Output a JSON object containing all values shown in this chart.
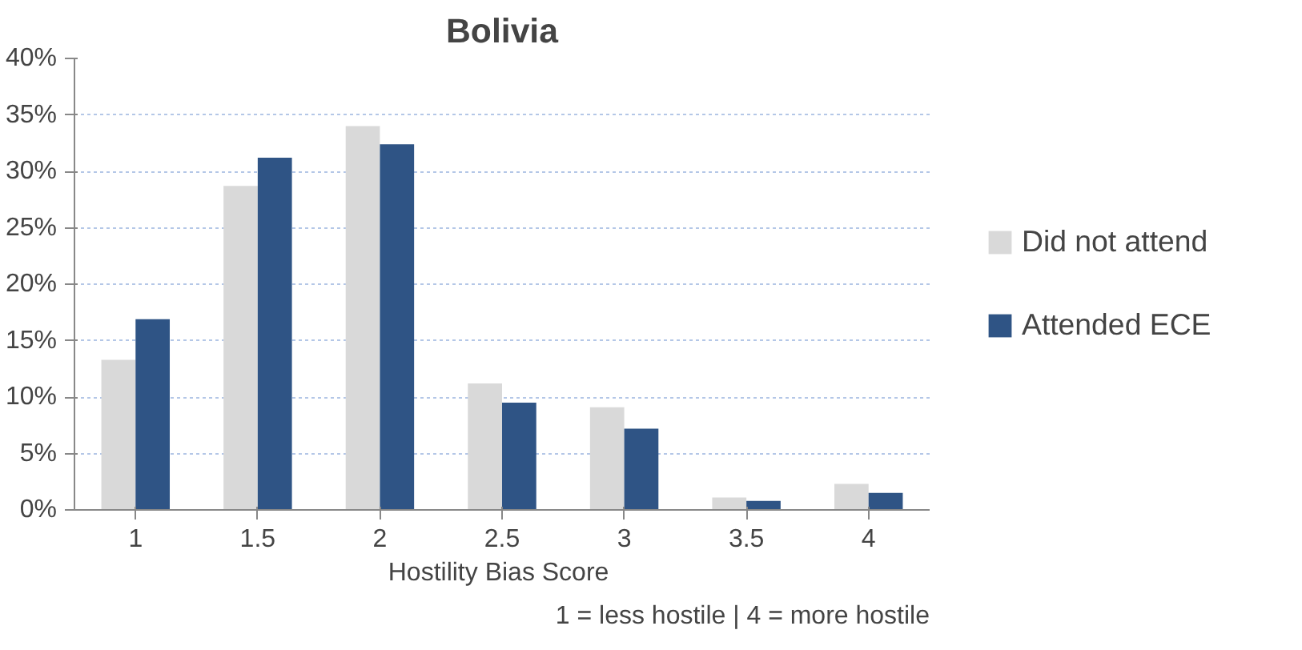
{
  "chart_data": {
    "type": "bar",
    "title": "Bolivia",
    "xlabel": "Hostility Bias  Score",
    "categories": [
      "1",
      "1.5",
      "2",
      "2.5",
      "3",
      "3.5",
      "4"
    ],
    "series": [
      {
        "name": "Did not attend",
        "color": "#d9d9d9",
        "values": [
          13.3,
          28.7,
          34.0,
          11.2,
          9.1,
          1.1,
          2.3
        ]
      },
      {
        "name": "Attended ECE",
        "color": "#2f5485",
        "values": [
          16.9,
          31.2,
          32.4,
          9.5,
          7.2,
          0.8,
          1.5
        ]
      }
    ],
    "ylim": [
      0,
      40
    ],
    "yticks": [
      {
        "value": 0,
        "label": "0%"
      },
      {
        "value": 5,
        "label": "5%"
      },
      {
        "value": 10,
        "label": "10%"
      },
      {
        "value": 15,
        "label": "15%"
      },
      {
        "value": 20,
        "label": "20%"
      },
      {
        "value": 25,
        "label": "25%"
      },
      {
        "value": 30,
        "label": "30%"
      },
      {
        "value": 35,
        "label": "35%"
      },
      {
        "value": 40,
        "label": "40%"
      }
    ],
    "grid": "y",
    "legend": "right",
    "annotations": [
      "1 = less hostile | 4 = more hostile"
    ]
  }
}
